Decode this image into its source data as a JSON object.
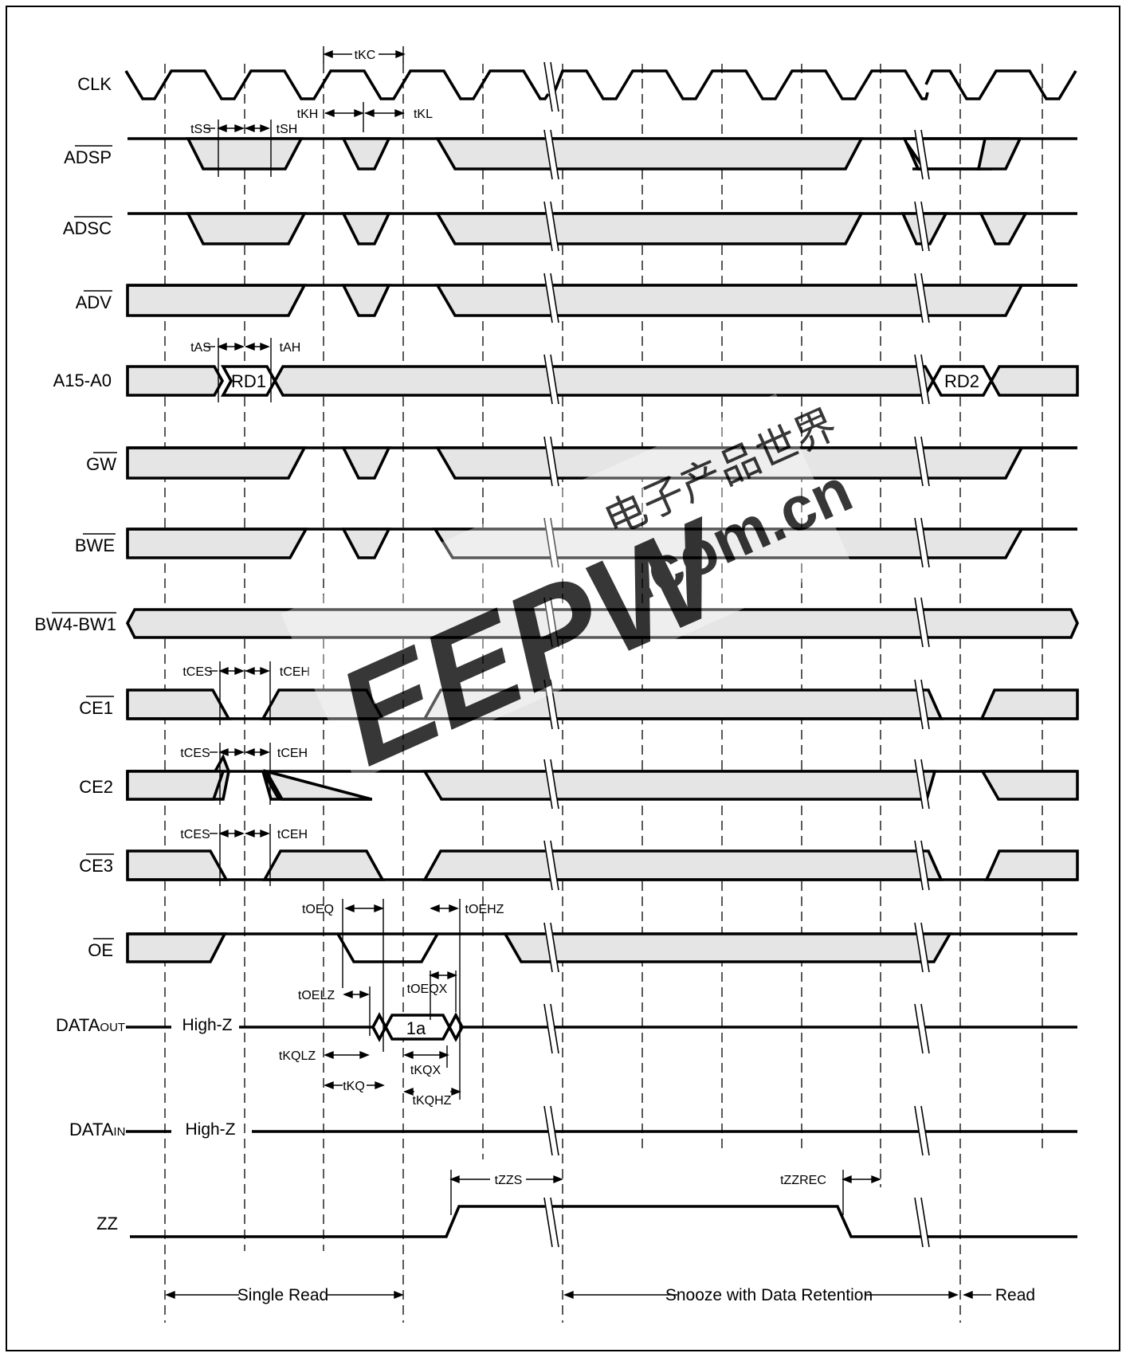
{
  "signals": [
    {
      "id": "clk",
      "label": "CLK",
      "overline": false,
      "sub": ""
    },
    {
      "id": "adsp",
      "label": "ADSP",
      "overline": true,
      "sub": ""
    },
    {
      "id": "adsc",
      "label": "ADSC",
      "overline": true,
      "sub": ""
    },
    {
      "id": "adv",
      "label": "ADV",
      "overline": true,
      "sub": ""
    },
    {
      "id": "addr",
      "label": "A15-A0",
      "overline": false,
      "sub": ""
    },
    {
      "id": "gw",
      "label": "GW",
      "overline": true,
      "sub": ""
    },
    {
      "id": "bwe",
      "label": "BWE",
      "overline": true,
      "sub": ""
    },
    {
      "id": "bw",
      "label": "BW4-BW1",
      "overline": true,
      "sub": ""
    },
    {
      "id": "ce1",
      "label": "CE1",
      "overline": true,
      "sub": ""
    },
    {
      "id": "ce2",
      "label": "CE2",
      "overline": false,
      "sub": ""
    },
    {
      "id": "ce3",
      "label": "CE3",
      "overline": true,
      "sub": ""
    },
    {
      "id": "oe",
      "label": "OE",
      "overline": true,
      "sub": ""
    },
    {
      "id": "dout",
      "label": "DATA",
      "overline": false,
      "sub": "OUT"
    },
    {
      "id": "din",
      "label": "DATA",
      "overline": false,
      "sub": "IN"
    },
    {
      "id": "zz",
      "label": "ZZ",
      "overline": false,
      "sub": ""
    }
  ],
  "timing_labels": {
    "tkc": "tKC",
    "tkh": "tKH",
    "tkl": "tKL",
    "tss": "tSS",
    "tsh": "tSH",
    "tas": "tAS",
    "tah": "tAH",
    "tces": "tCES",
    "tceh": "tCEH",
    "toeq": "tOEQ",
    "toehz": "tOEHZ",
    "toelz": "tOELZ",
    "toeqx": "tOEQX",
    "tkqlz": "tKQLZ",
    "tkq": "tKQ",
    "tkqx": "tKQX",
    "tkqhz": "tKQHZ",
    "tzzs": "tZZS",
    "tzzrec": "tZZREC"
  },
  "values": {
    "rd1": "RD1",
    "rd2": "RD2",
    "data1": "1a",
    "highz": "High-Z"
  },
  "phases": {
    "single_read": "Single Read",
    "snooze": "Snooze with Data Retention",
    "read": "Read"
  },
  "watermark": {
    "brand": "EEPW",
    "domain": ".com.cn",
    "chinese": "电子产品世界",
    "color": "#e23b3b"
  }
}
